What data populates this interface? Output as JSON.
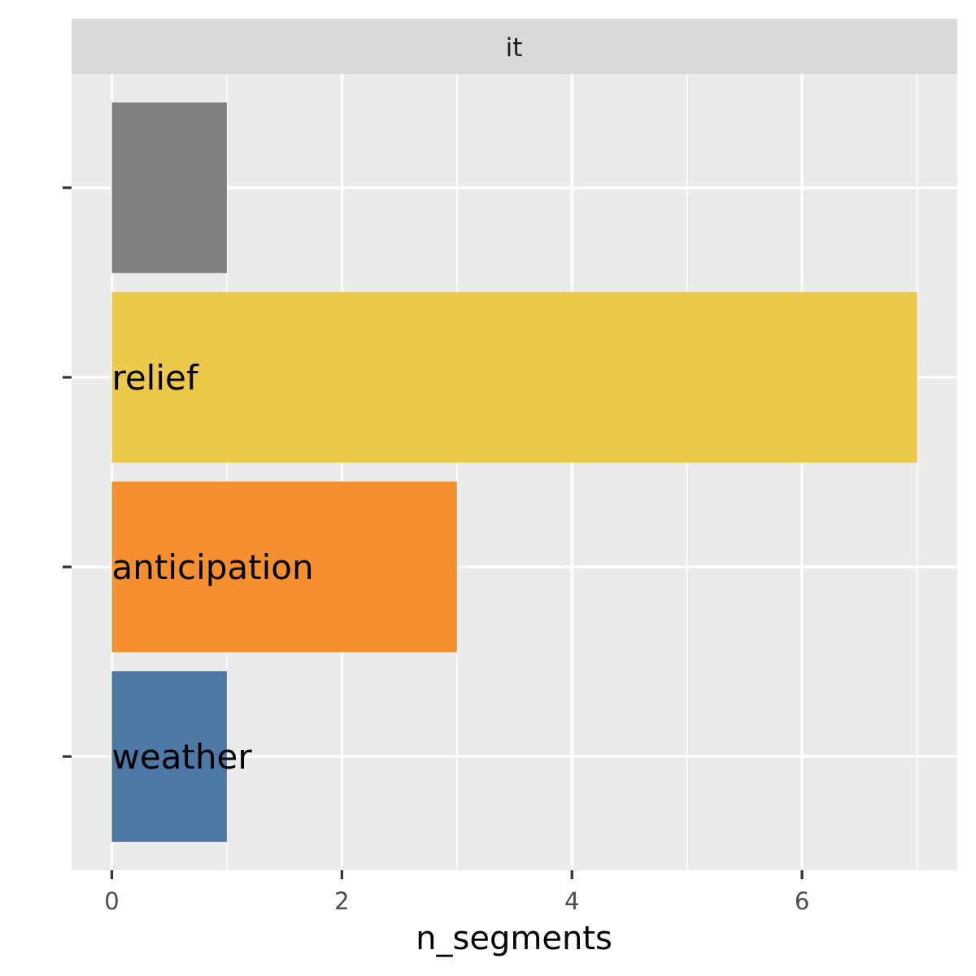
{
  "chart_data": {
    "type": "bar",
    "orientation": "horizontal",
    "facet_label": "it",
    "xlabel": "n_segments",
    "ylabel": "",
    "xlim": [
      -0.35,
      7.35
    ],
    "x_ticks": [
      0,
      2,
      4,
      6
    ],
    "grid": true,
    "bars": [
      {
        "label": "",
        "value": 1,
        "color": "#808080"
      },
      {
        "label": "relief",
        "value": 7,
        "color": "#ECC94B"
      },
      {
        "label": "anticipation",
        "value": 3,
        "color": "#F4902F"
      },
      {
        "label": "weather",
        "value": 1,
        "color": "#4E79A7"
      }
    ]
  }
}
